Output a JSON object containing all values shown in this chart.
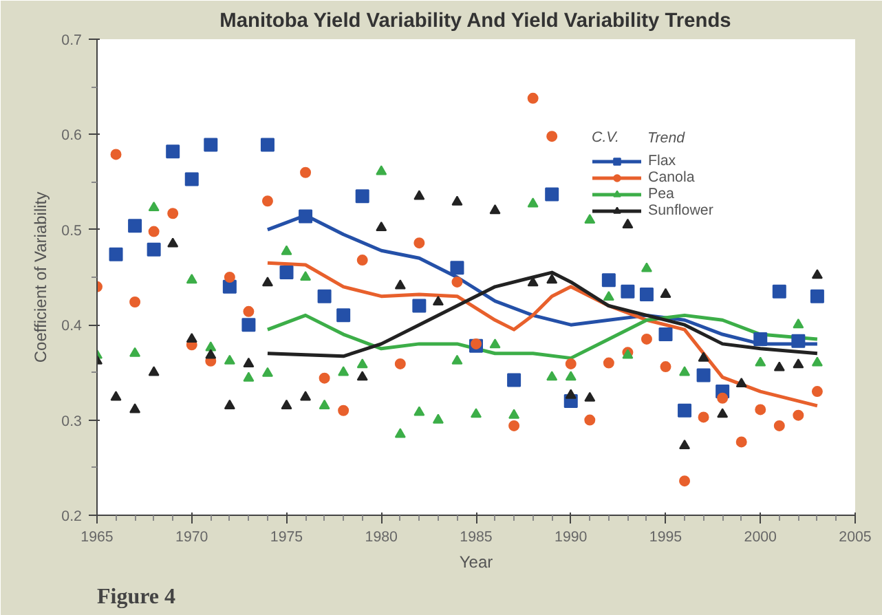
{
  "chart_data": {
    "type": "scatter",
    "title": "Manitoba Yield Variability And Yield Variability Trends",
    "xlabel": "Year",
    "ylabel": "Coefficient of Variability",
    "legend_title": "C.V.",
    "annotations": [
      "Trend",
      "Figure 4"
    ],
    "xlim": [
      1965,
      2005
    ],
    "xticks": [
      1965,
      1970,
      1975,
      1980,
      1985,
      1990,
      1995,
      2000,
      2005
    ],
    "ylim": [
      0.2,
      0.7
    ],
    "yticks": [
      {
        "value": 0.2,
        "label": "0.2"
      },
      {
        "value": 0.3,
        "label": "0.3"
      },
      {
        "value": 0.4,
        "label": "0.4"
      },
      {
        "value": 0.5,
        "label": "0.5"
      },
      {
        "value": 0.6,
        "label": "0.6"
      },
      {
        "value": 0.7,
        "label": "0.7"
      }
    ],
    "grid": false,
    "legend": "top right",
    "line_style": "solid",
    "series": [
      {
        "name": "Flax",
        "marker": "square",
        "color": "#2450a8",
        "x": [
          1966,
          1967,
          1968,
          1969,
          1970,
          1971,
          1972,
          1973,
          1974,
          1975,
          1976,
          1977,
          1978,
          1979,
          1982,
          1984,
          1985,
          1987,
          1989,
          1990,
          1992,
          1993,
          1994,
          1995,
          1996,
          1997,
          1998,
          2000,
          2001,
          2002,
          2003
        ],
        "values": [
          0.474,
          0.504,
          0.479,
          0.582,
          0.553,
          0.589,
          0.44,
          0.4,
          0.589,
          0.455,
          0.514,
          0.43,
          0.41,
          0.535,
          0.42,
          0.46,
          0.378,
          0.342,
          0.537,
          0.32,
          0.447,
          0.435,
          0.432,
          0.39,
          0.31,
          0.347,
          0.33,
          0.385,
          0.435,
          0.383,
          0.43
        ]
      },
      {
        "name": "Canola",
        "marker": "circle",
        "color": "#e8602c",
        "x": [
          1965,
          1966,
          1967,
          1968,
          1969,
          1970,
          1971,
          1972,
          1973,
          1974,
          1976,
          1977,
          1978,
          1979,
          1981,
          1982,
          1984,
          1985,
          1987,
          1988,
          1989,
          1990,
          1991,
          1992,
          1993,
          1994,
          1995,
          1996,
          1997,
          1998,
          1999,
          2000,
          2001,
          2002,
          2003
        ],
        "values": [
          0.44,
          0.579,
          0.424,
          0.498,
          0.517,
          0.379,
          0.362,
          0.45,
          0.414,
          0.53,
          0.56,
          0.344,
          0.31,
          0.468,
          0.359,
          0.486,
          0.445,
          0.38,
          0.294,
          0.638,
          0.598,
          0.359,
          0.3,
          0.36,
          0.371,
          0.385,
          0.356,
          0.236,
          0.303,
          0.323,
          0.277,
          0.311,
          0.294,
          0.305,
          0.33
        ]
      },
      {
        "name": "Pea",
        "marker": "triangle",
        "color": "#3cae48",
        "x": [
          1965,
          1967,
          1968,
          1970,
          1971,
          1972,
          1973,
          1974,
          1975,
          1976,
          1977,
          1978,
          1979,
          1980,
          1981,
          1982,
          1983,
          1984,
          1985,
          1986,
          1987,
          1988,
          1989,
          1990,
          1991,
          1992,
          1993,
          1994,
          1996,
          2000,
          2002,
          2003
        ],
        "values": [
          0.368,
          0.37,
          0.523,
          0.447,
          0.376,
          0.362,
          0.344,
          0.349,
          0.477,
          0.45,
          0.315,
          0.35,
          0.358,
          0.561,
          0.285,
          0.308,
          0.3,
          0.362,
          0.306,
          0.379,
          0.305,
          0.527,
          0.345,
          0.345,
          0.51,
          0.429,
          0.368,
          0.459,
          0.35,
          0.36,
          0.4,
          0.36
        ]
      },
      {
        "name": "Sunflower",
        "marker": "triangle",
        "color": "#222222",
        "x": [
          1965,
          1966,
          1967,
          1968,
          1969,
          1970,
          1971,
          1972,
          1973,
          1974,
          1975,
          1976,
          1979,
          1980,
          1981,
          1982,
          1983,
          1984,
          1986,
          1988,
          1989,
          1990,
          1991,
          1993,
          1995,
          1996,
          1997,
          1998,
          1999,
          2001,
          2002,
          2003
        ],
        "values": [
          0.362,
          0.324,
          0.311,
          0.35,
          0.485,
          0.385,
          0.368,
          0.315,
          0.359,
          0.444,
          0.315,
          0.324,
          0.345,
          0.502,
          0.441,
          0.535,
          0.424,
          0.529,
          0.52,
          0.444,
          0.447,
          0.326,
          0.323,
          0.505,
          0.432,
          0.273,
          0.365,
          0.306,
          0.338,
          0.355,
          0.358,
          0.452
        ]
      },
      {
        "type": "line",
        "color": "#2450a8",
        "x": [
          1974,
          1976,
          1978,
          1980,
          1982,
          1984,
          1986,
          1988,
          1990,
          1992,
          1994,
          1996,
          1998,
          2000,
          2003
        ],
        "values": [
          0.5,
          0.515,
          0.495,
          0.478,
          0.47,
          0.45,
          0.425,
          0.41,
          0.4,
          0.405,
          0.41,
          0.405,
          0.39,
          0.38,
          0.38
        ]
      },
      {
        "type": "line",
        "color": "#e8602c",
        "x": [
          1974,
          1976,
          1978,
          1980,
          1982,
          1984,
          1986,
          1987,
          1988,
          1989,
          1990,
          1992,
          1994,
          1996,
          1997,
          1998,
          2000,
          2003
        ],
        "values": [
          0.465,
          0.463,
          0.44,
          0.43,
          0.432,
          0.43,
          0.405,
          0.395,
          0.41,
          0.43,
          0.44,
          0.42,
          0.405,
          0.395,
          0.37,
          0.345,
          0.33,
          0.315
        ]
      },
      {
        "type": "line",
        "color": "#3cae48",
        "x": [
          1974,
          1976,
          1978,
          1980,
          1982,
          1984,
          1986,
          1988,
          1990,
          1992,
          1994,
          1996,
          1998,
          2000,
          2003
        ],
        "values": [
          0.395,
          0.41,
          0.39,
          0.375,
          0.38,
          0.38,
          0.37,
          0.37,
          0.365,
          0.385,
          0.405,
          0.41,
          0.405,
          0.39,
          0.385
        ]
      },
      {
        "type": "line",
        "color": "#222222",
        "x": [
          1974,
          1978,
          1980,
          1982,
          1984,
          1986,
          1988,
          1989,
          1990,
          1992,
          1994,
          1996,
          1998,
          2000,
          2003
        ],
        "values": [
          0.37,
          0.367,
          0.38,
          0.4,
          0.42,
          0.44,
          0.45,
          0.455,
          0.445,
          0.42,
          0.41,
          0.4,
          0.38,
          0.375,
          0.37
        ]
      }
    ]
  }
}
